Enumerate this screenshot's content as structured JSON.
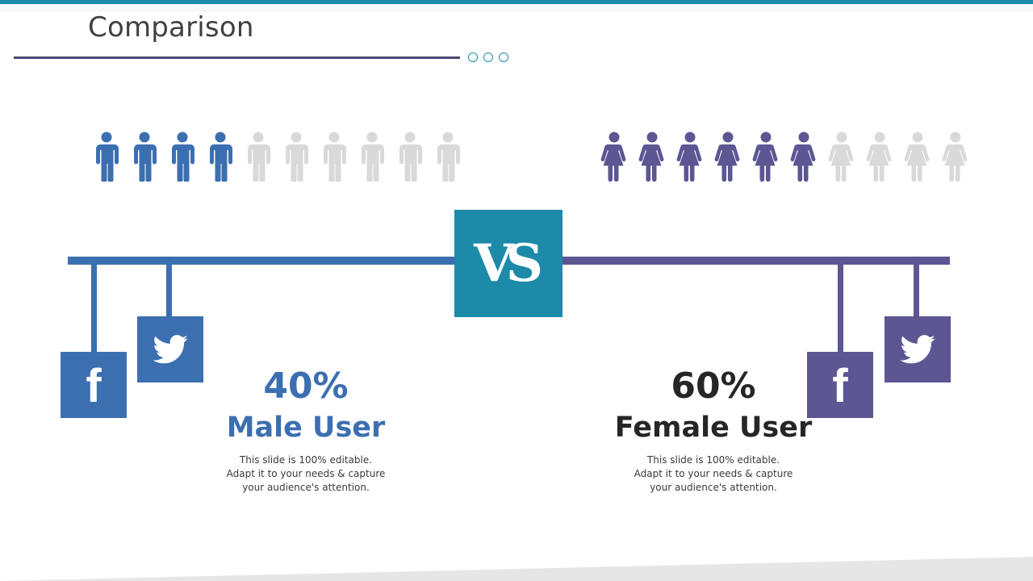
{
  "title": "Comparison",
  "colors": {
    "accent": "#1c8aa8",
    "male": "#3c6fb0",
    "female": "#5c5693",
    "inactive": "#d9d9d9",
    "title_rule": "#4b4a72"
  },
  "vs_label": "VS",
  "male": {
    "percent": "40%",
    "label": "Male User",
    "description": "This slide is 100% editable. Adapt it to your needs & capture your audience's attention.",
    "icons_total": 10,
    "icons_filled": 4,
    "social_icons": [
      "facebook-icon",
      "twitter-icon"
    ]
  },
  "female": {
    "percent": "60%",
    "label": "Female User",
    "description": "This slide is 100% editable. Adapt it to your needs & capture your audience's attention.",
    "icons_total": 10,
    "icons_filled": 6,
    "social_icons": [
      "facebook-icon",
      "twitter-icon"
    ]
  }
}
